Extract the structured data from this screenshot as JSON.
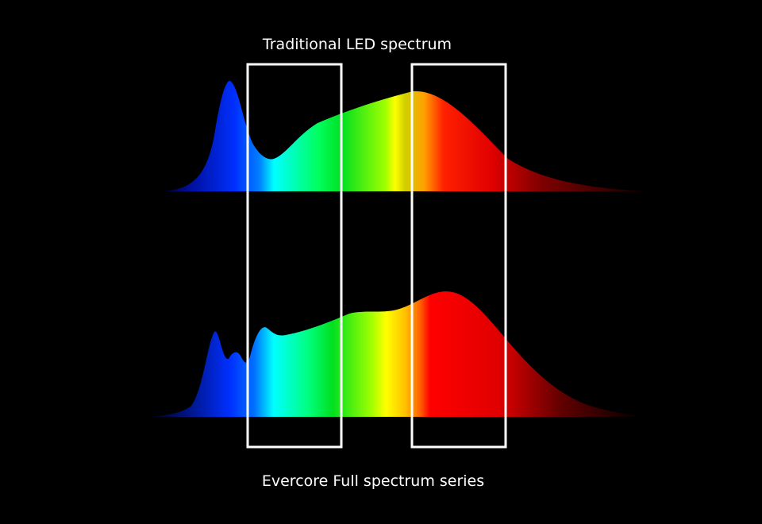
{
  "header": {
    "title": "Traditional LED spectrum"
  },
  "footer": {
    "caption": "Evercore Full spectrum series"
  }
}
